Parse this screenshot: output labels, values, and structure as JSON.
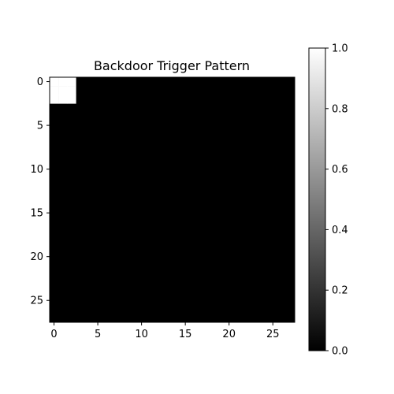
{
  "chart_data": [
    {
      "type": "heatmap",
      "title": "Backdoor Trigger Pattern",
      "xlabel": "",
      "ylabel": "",
      "shape": [
        28,
        28
      ],
      "background_value": 0.0,
      "nonzero_cells": {
        "rows": [
          0,
          2
        ],
        "cols": [
          0,
          2
        ],
        "value": 1.0
      },
      "x_ticks": [
        0,
        5,
        10,
        15,
        20,
        25
      ],
      "y_ticks": [
        0,
        5,
        10,
        15,
        20,
        25
      ],
      "y_axis_inverted": true,
      "grid": false,
      "colormap": "gray",
      "colors": {
        "low": "#000000",
        "high": "#ffffff"
      }
    },
    {
      "type": "colorbar",
      "range": [
        0.0,
        1.0
      ],
      "ticks": [
        "0.0",
        "0.2",
        "0.4",
        "0.6",
        "0.8",
        "1.0"
      ]
    }
  ]
}
